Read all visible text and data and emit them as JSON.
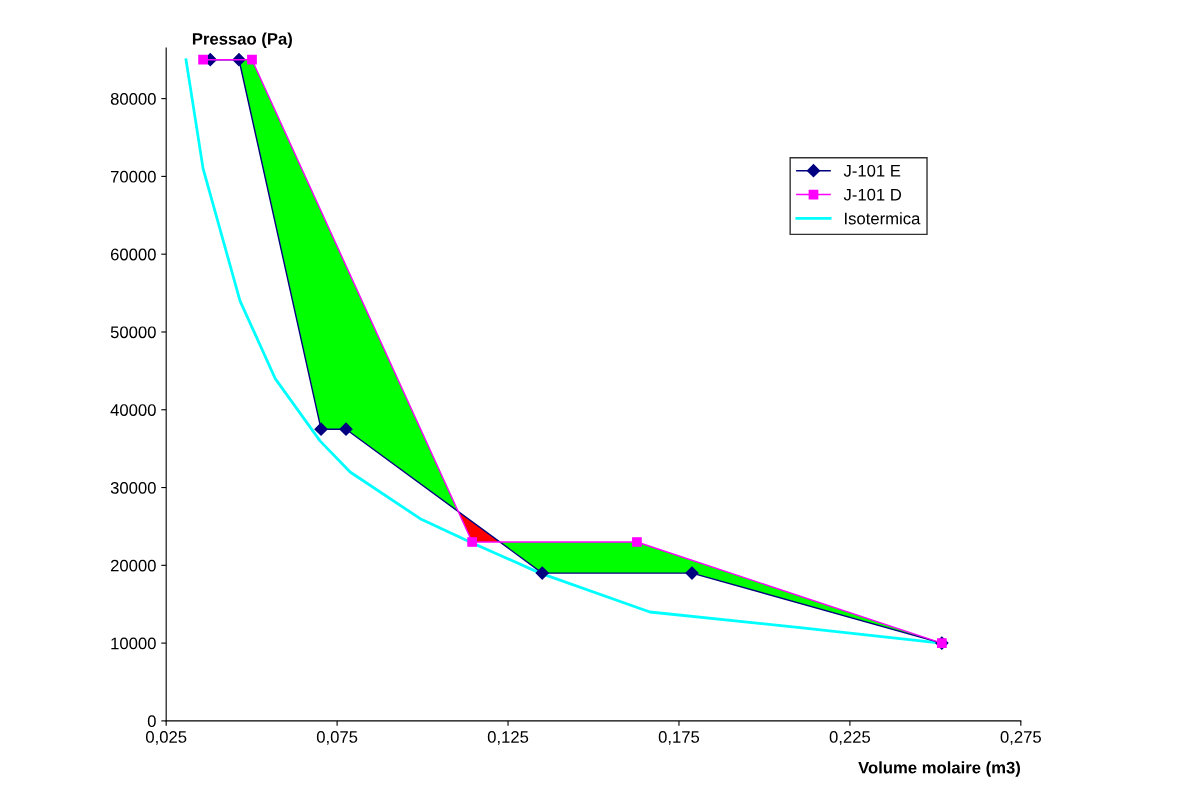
{
  "chart_data": {
    "type": "line",
    "xlabel": "Volume molaire (m3)",
    "ylabel": "Pressao (Pa)",
    "xlim": [
      0.025,
      0.275
    ],
    "ylim": [
      0,
      86500
    ],
    "xticks": [
      {
        "value": 0.025,
        "label": "0,025"
      },
      {
        "value": 0.075,
        "label": "0,075"
      },
      {
        "value": 0.125,
        "label": "0,125"
      },
      {
        "value": 0.175,
        "label": "0,175"
      },
      {
        "value": 0.225,
        "label": "0,225"
      },
      {
        "value": 0.275,
        "label": "0,275"
      }
    ],
    "yticks": [
      0,
      10000,
      20000,
      30000,
      40000,
      50000,
      60000,
      70000,
      80000
    ],
    "grid": false,
    "legend": "right",
    "colors": [
      "#00ff00",
      "#ff0000"
    ],
    "series": [
      {
        "name": "J-101 E",
        "color": "#000080",
        "marker": "diamond",
        "x": [
          0.0379,
          0.0463,
          0.0703,
          0.0776,
          0.135,
          0.1788,
          0.2519
        ],
        "values": [
          85000,
          85000,
          37500,
          37500,
          19000,
          19000,
          10000
        ]
      },
      {
        "name": "J-101 D",
        "color": "#ff00ff",
        "marker": "square",
        "x": [
          0.0358,
          0.0501,
          0.1145,
          0.1627,
          0.2519
        ],
        "values": [
          85000,
          85000,
          23000,
          23000,
          10000
        ]
      },
      {
        "name": "Isotermica",
        "color": "#00ffff",
        "marker": "none",
        "x": [
          0.0308,
          0.0358,
          0.0466,
          0.0569,
          0.07,
          0.0788,
          0.0993,
          0.1139,
          0.1344,
          0.1665,
          0.2104,
          0.2519
        ],
        "values": [
          85000,
          71000,
          54000,
          44000,
          36000,
          32000,
          26000,
          23000,
          19000,
          14000,
          12000,
          10000
        ]
      }
    ]
  }
}
